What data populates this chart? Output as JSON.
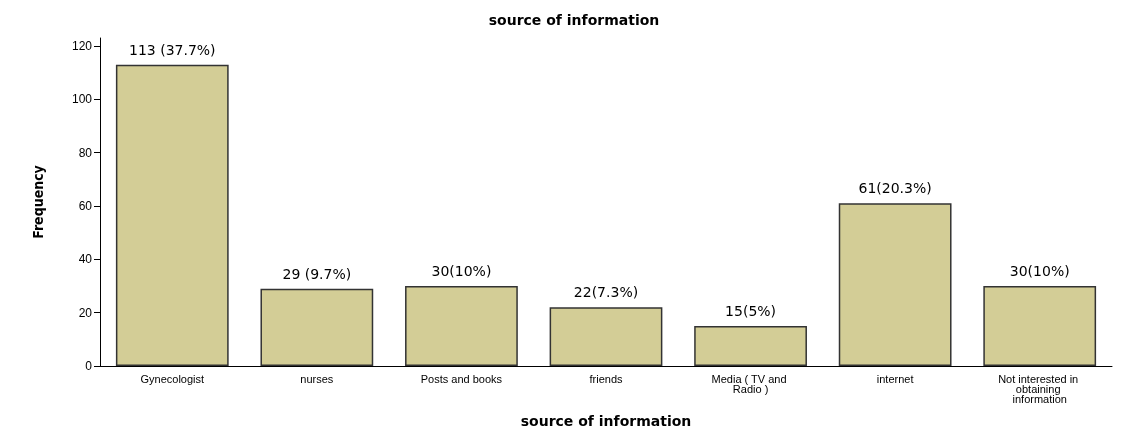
{
  "chart_data": {
    "type": "bar",
    "title": "source of information",
    "xlabel": "source of information",
    "ylabel": "Frequency",
    "categories": [
      "Gynecologist",
      "nurses",
      "Posts and books",
      "friends",
      "Media ( TV and Radio )",
      "internet",
      "Not interested in obtaining information"
    ],
    "values": [
      113,
      29,
      30,
      22,
      15,
      61,
      30
    ],
    "value_labels": [
      "113 (37.7%)",
      "29 (9.7%)",
      "30(10%)",
      "22(7.3%)",
      "15(5%)",
      "61(20.3%)",
      "30(10%)"
    ],
    "color": "#d3cd96",
    "ylim": [
      0,
      123
    ],
    "yticks": [
      0,
      20,
      40,
      60,
      80,
      100,
      120
    ],
    "grid": false
  }
}
